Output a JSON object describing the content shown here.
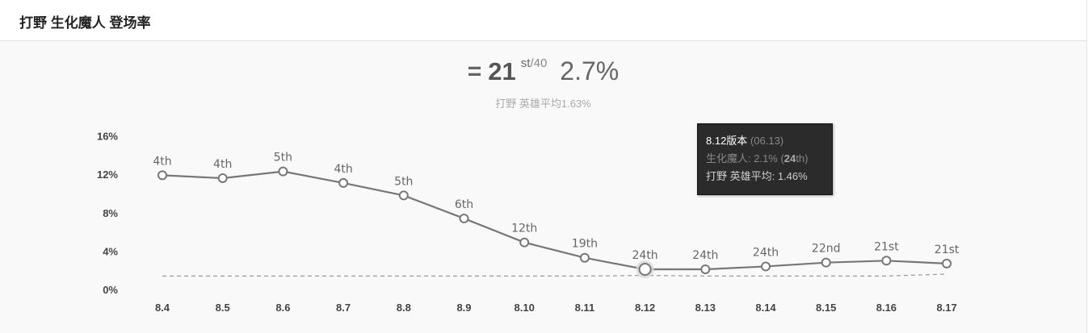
{
  "header": {
    "title": "打野 生化魔人 登场率"
  },
  "summary": {
    "trend_symbol": "=",
    "rank": "21",
    "rank_suffix": "st",
    "rank_total": "/40",
    "rate": "2.7%",
    "avg_text": "打野 英雄平均1.63%"
  },
  "tooltip": {
    "version": "8.12版本",
    "date": "(06.13)",
    "champ_prefix": "生化魔人: 2.1% (",
    "champ_rank": "24",
    "champ_rank_suffix": "th)",
    "avg_label": "打野 英雄平均: 1.46%"
  },
  "chart_data": {
    "type": "line",
    "categories": [
      "8.4",
      "8.5",
      "8.6",
      "8.7",
      "8.8",
      "8.9",
      "8.10",
      "8.11",
      "8.12",
      "8.13",
      "8.14",
      "8.15",
      "8.16",
      "8.17"
    ],
    "y_ticks": [
      "0%",
      "4%",
      "8%",
      "12%",
      "16%"
    ],
    "ylim": [
      0,
      16
    ],
    "grid": false,
    "series": [
      {
        "values": [
          11.9,
          11.6,
          12.3,
          11.1,
          9.8,
          7.4,
          4.9,
          3.3,
          2.1,
          2.1,
          2.4,
          2.8,
          3.0,
          2.7
        ],
        "labels": [
          "4th",
          "4th",
          "5th",
          "4th",
          "5th",
          "6th",
          "12th",
          "19th",
          "24th",
          "24th",
          "24th",
          "22nd",
          "21st",
          "21st"
        ],
        "color": "#777777",
        "highlight_index": 8
      },
      {
        "values": [
          1.4,
          1.4,
          1.4,
          1.4,
          1.4,
          1.4,
          1.4,
          1.4,
          1.46,
          1.4,
          1.4,
          1.4,
          1.4,
          1.6
        ],
        "style": "dashed",
        "color": "#999999"
      }
    ]
  }
}
